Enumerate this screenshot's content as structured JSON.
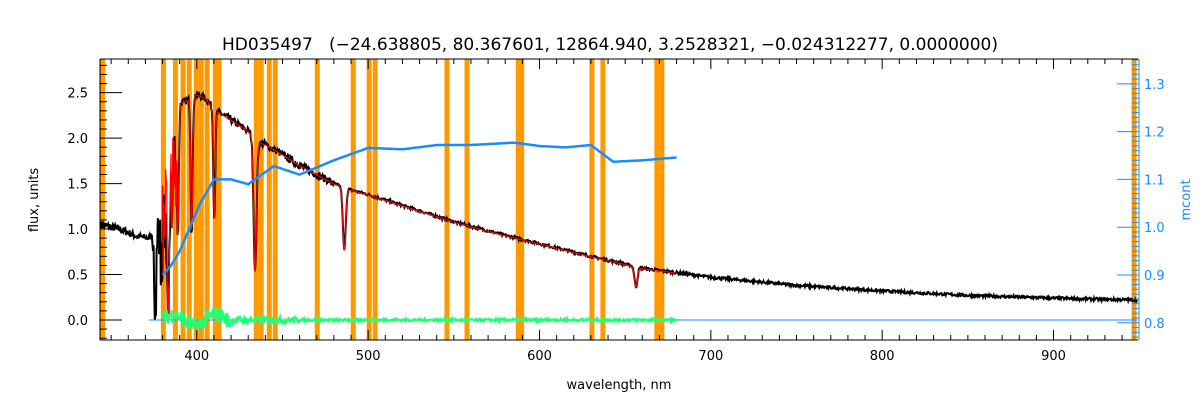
{
  "chart_data": {
    "type": "line",
    "title": "HD035497   (−24.638805, 80.367601, 12864.940, 3.2528321, −0.024312277, 0.0000000)",
    "xlabel": "wavelength, nm",
    "ylabel": "flux, units",
    "y2label": "mcont",
    "xlim": [
      343.5,
      949.3
    ],
    "ylim": [
      -0.22,
      2.87
    ],
    "y2lim": [
      0.764,
      1.352
    ],
    "xticks": [
      400,
      500,
      600,
      700,
      800,
      900
    ],
    "xtick_labels": [
      "400",
      "500",
      "600",
      "700",
      "800",
      "900"
    ],
    "yticks": [
      0.0,
      0.5,
      1.0,
      1.5,
      2.0,
      2.5
    ],
    "ytick_labels": [
      "0.0",
      "0.5",
      "1.0",
      "1.5",
      "2.0",
      "2.5"
    ],
    "y2ticks": [
      0.8,
      0.9,
      1.0,
      1.1,
      1.2,
      1.3
    ],
    "y2tick_labels": [
      "0.8",
      "0.9",
      "1.0",
      "1.1",
      "1.2",
      "1.3"
    ],
    "grid": false,
    "colors": {
      "observed": "#000000",
      "model": "#ff0000",
      "mcont": "#1a8cff",
      "residual": "#22ff77",
      "mask": "#ff9900",
      "axis2": "#1a8cff"
    },
    "mask_lines_nm": [
      345,
      380.5,
      387.5,
      392,
      395.6,
      399.7,
      402.6,
      406,
      410.8,
      413,
      434.7,
      437.6,
      442.3,
      445.8,
      470.3,
      491.3,
      500.6,
      504.1,
      546,
      557.7,
      587.6,
      589.6,
      630.6,
      637,
      668.5,
      671.4,
      947
    ],
    "series": [
      {
        "name": "observed flux",
        "axis": "left",
        "x": [
          344,
          355,
          365,
          372,
          376,
          380,
          385,
          390,
          395,
          400,
          405,
          410,
          415,
          420,
          430,
          435,
          440,
          450,
          460,
          470,
          480,
          490,
          500,
          520,
          550,
          580,
          600,
          630,
          660,
          680,
          700,
          750,
          800,
          850,
          900,
          949
        ],
        "y": [
          1.05,
          1.0,
          0.92,
          0.9,
          1.0,
          1.5,
          2.1,
          2.38,
          2.42,
          2.48,
          2.44,
          2.32,
          2.26,
          2.2,
          2.08,
          1.96,
          1.93,
          1.82,
          1.7,
          1.6,
          1.5,
          1.43,
          1.38,
          1.26,
          1.08,
          0.93,
          0.84,
          0.7,
          0.57,
          0.52,
          0.47,
          0.38,
          0.32,
          0.27,
          0.24,
          0.22
        ]
      },
      {
        "name": "absorption lines",
        "center_nm": [
          383.5,
          388.9,
          397.0,
          410.2,
          434.0,
          486.1,
          656.3
        ],
        "depth": [
          1.2,
          1.4,
          1.5,
          1.2,
          1.6,
          0.78,
          0.3
        ]
      },
      {
        "name": "mcont",
        "axis": "right",
        "x": [
          380,
          385,
          390,
          396,
          402,
          410,
          420,
          430,
          445,
          460,
          480,
          500,
          520,
          540,
          560,
          585,
          600,
          615,
          630,
          643,
          660,
          680
        ],
        "y": [
          0.9,
          0.92,
          0.95,
          1.0,
          1.05,
          1.1,
          1.1,
          1.09,
          1.128,
          1.11,
          1.14,
          1.166,
          1.163,
          1.172,
          1.172,
          1.177,
          1.17,
          1.167,
          1.172,
          1.137,
          1.14,
          1.146
        ]
      },
      {
        "name": "residual",
        "axis": "left",
        "x_range": [
          380,
          680
        ],
        "level": 0.0
      },
      {
        "name": "zero line",
        "axis": "left",
        "x_range": [
          372,
          949
        ],
        "level": 0.0
      }
    ]
  }
}
